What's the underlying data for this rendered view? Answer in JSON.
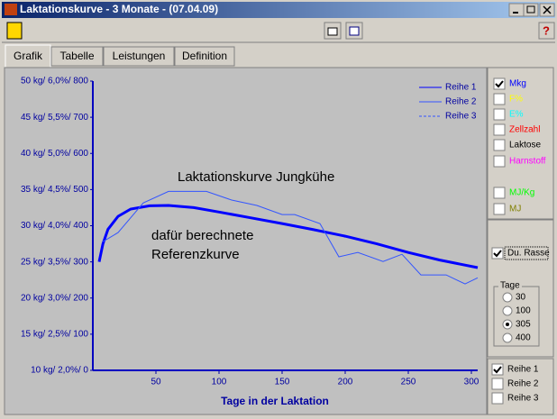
{
  "window": {
    "title": "Laktationskurve - 3 Monate - (07.04.09)"
  },
  "tabs": [
    "Grafik",
    "Tabelle",
    "Leistungen",
    "Definition"
  ],
  "chart_data": {
    "type": "line",
    "xlabel": "Tage in der Laktation",
    "annotations": [
      "Laktationskurve Jungkühe",
      "dafür berechnete",
      "Referenzkurve"
    ],
    "xlim": [
      0,
      305
    ],
    "xticks": [
      50,
      100,
      150,
      200,
      250,
      300
    ],
    "ylim": [
      0,
      800
    ],
    "yticks": [
      {
        "value": 0,
        "label": "10 kg/ 2,0%/     0"
      },
      {
        "value": 100,
        "label": "15 kg/ 2,5%/ 100"
      },
      {
        "value": 200,
        "label": "20 kg/ 3,0%/ 200"
      },
      {
        "value": 300,
        "label": "25 kg/ 3,5%/ 300"
      },
      {
        "value": 400,
        "label": "30 kg/ 4,0%/ 400"
      },
      {
        "value": 500,
        "label": "35 kg/ 4,5%/ 500"
      },
      {
        "value": 600,
        "label": "40 kg/ 5,0%/ 600"
      },
      {
        "value": 700,
        "label": "45 kg/ 5,5%/ 700"
      },
      {
        "value": 800,
        "label": "50 kg/ 6,0%/ 800"
      }
    ],
    "series": [
      {
        "name": "Reihe 1",
        "color": "#0000ff",
        "x": [
          5,
          8,
          12,
          20,
          30,
          45,
          60,
          80,
          100,
          125,
          150,
          175,
          200,
          225,
          250,
          275,
          305
        ],
        "values": [
          300,
          350,
          390,
          426,
          446,
          455,
          456,
          450,
          438,
          422,
          406,
          389,
          371,
          350,
          326,
          305,
          284
        ]
      },
      {
        "name": "Reihe 2",
        "color": "#3355ff",
        "x": [
          8,
          20,
          40,
          60,
          90,
          110,
          130,
          150,
          160,
          180,
          195,
          210,
          230,
          245,
          260,
          280,
          295,
          305
        ],
        "values": [
          356,
          381,
          463,
          495,
          495,
          471,
          456,
          431,
          431,
          406,
          314,
          326,
          301,
          321,
          264,
          264,
          239,
          256
        ]
      },
      {
        "name": "Reihe 3",
        "color": "#3355ff"
      }
    ]
  },
  "sidebar": {
    "measures": [
      {
        "label": "Mkg",
        "color": "#0000ff",
        "checked": true
      },
      {
        "label": "F%",
        "color": "#ffff00",
        "checked": false
      },
      {
        "label": "E%",
        "color": "#00ffff",
        "checked": false
      },
      {
        "label": "Zellzahl",
        "color": "#ff0000",
        "checked": false
      },
      {
        "label": "Laktose",
        "color": "#000000",
        "checked": false
      },
      {
        "label": "Harnstoff",
        "color": "#ff00ff",
        "checked": false
      },
      {
        "label": "MJ/Kg",
        "color": "#00ff00",
        "checked": false
      },
      {
        "label": "MJ",
        "color": "#808000",
        "checked": false
      }
    ],
    "breed": {
      "label": "Du. Rasse",
      "checked": true
    },
    "days": {
      "title": "Tage",
      "options": [
        "30",
        "100",
        "305",
        "400"
      ],
      "selected": 2
    },
    "rows": [
      {
        "label": "Reihe 1",
        "checked": true
      },
      {
        "label": "Reihe 2",
        "checked": false
      },
      {
        "label": "Reihe 3",
        "checked": false
      }
    ]
  }
}
